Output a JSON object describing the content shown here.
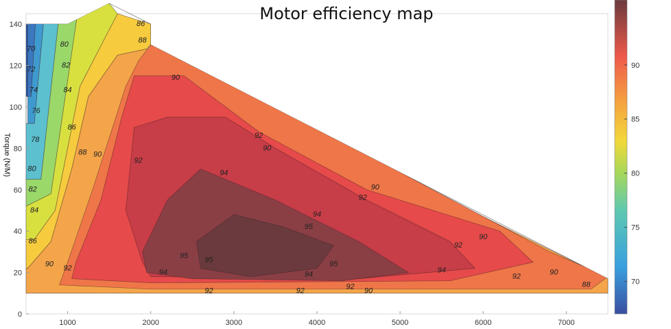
{
  "chart_data": {
    "type": "heatmap",
    "subtype": "filled-contour",
    "title": "Motor efficiency map",
    "xlabel": "",
    "ylabel": "Torque  (N/M)",
    "xlim": [
      500,
      7500
    ],
    "ylim": [
      0,
      145
    ],
    "x_ticks": [
      1000,
      2000,
      3000,
      4000,
      5000,
      6000,
      7000
    ],
    "y_ticks": [
      0,
      20,
      40,
      60,
      80,
      100,
      120,
      140
    ],
    "colorbar": {
      "min": 67,
      "max": 96,
      "ticks": [
        70,
        75,
        80,
        85,
        90
      ]
    },
    "grid": false,
    "envelope": [
      [
        500,
        140
      ],
      [
        1000,
        140
      ],
      [
        1500,
        150
      ],
      [
        2000,
        140
      ],
      [
        2000,
        130
      ],
      [
        7500,
        17
      ],
      [
        7500,
        10
      ],
      [
        500,
        10
      ]
    ],
    "contour_levels": [
      70,
      72,
      74,
      76,
      78,
      80,
      82,
      84,
      86,
      88,
      90,
      92,
      94,
      95
    ],
    "regions": [
      {
        "level": 70,
        "color": "#2a5aa8",
        "points": [
          [
            500,
            145
          ],
          [
            520,
            145
          ],
          [
            520,
            105
          ],
          [
            500,
            105
          ]
        ]
      },
      {
        "level": 72,
        "color": "#3a78c0",
        "points": [
          [
            520,
            145
          ],
          [
            620,
            145
          ],
          [
            560,
            105
          ],
          [
            520,
            105
          ]
        ]
      },
      {
        "level": 74,
        "color": "#3f9ad0",
        "points": [
          [
            620,
            145
          ],
          [
            720,
            145
          ],
          [
            600,
            92
          ],
          [
            520,
            92
          ],
          [
            520,
            105
          ],
          [
            560,
            105
          ]
        ]
      },
      {
        "level": 78,
        "color": "#5cc0cf",
        "points": [
          [
            720,
            145
          ],
          [
            900,
            145
          ],
          [
            680,
            65
          ],
          [
            500,
            65
          ],
          [
            500,
            92
          ],
          [
            600,
            92
          ]
        ]
      },
      {
        "level": 82,
        "color": "#9ad86a",
        "points": [
          [
            900,
            145
          ],
          [
            1130,
            148
          ],
          [
            800,
            58
          ],
          [
            500,
            52
          ],
          [
            500,
            65
          ],
          [
            680,
            65
          ]
        ]
      },
      {
        "level": 84,
        "color": "#d8e040",
        "points": [
          [
            1130,
            148
          ],
          [
            1500,
            150
          ],
          [
            1600,
            145
          ],
          [
            1150,
            110
          ],
          [
            850,
            50
          ],
          [
            600,
            36
          ],
          [
            500,
            36
          ],
          [
            500,
            52
          ],
          [
            800,
            58
          ]
        ]
      },
      {
        "level": 86,
        "color": "#f6cb3e",
        "points": [
          [
            1600,
            145
          ],
          [
            2000,
            140
          ],
          [
            2000,
            130
          ],
          [
            1950,
            128
          ],
          [
            1600,
            125
          ],
          [
            1250,
            105
          ],
          [
            1050,
            70
          ],
          [
            800,
            35
          ],
          [
            520,
            22
          ],
          [
            500,
            22
          ],
          [
            500,
            36
          ],
          [
            600,
            36
          ],
          [
            850,
            50
          ],
          [
            1150,
            110
          ]
        ]
      },
      {
        "level": 88,
        "color": "#f4a54a",
        "points": [
          [
            1950,
            128
          ],
          [
            7500,
            17
          ],
          [
            7500,
            10
          ],
          [
            500,
            10
          ],
          [
            500,
            22
          ],
          [
            520,
            22
          ],
          [
            800,
            35
          ],
          [
            1050,
            70
          ],
          [
            1250,
            105
          ],
          [
            1600,
            125
          ]
        ]
      },
      {
        "level": 90,
        "color": "#ef7648",
        "points": [
          [
            1850,
            122
          ],
          [
            2000,
            130
          ],
          [
            2600,
            120
          ],
          [
            5300,
            62
          ],
          [
            6800,
            30
          ],
          [
            7500,
            18
          ],
          [
            7300,
            12
          ],
          [
            6000,
            12
          ],
          [
            2000,
            12
          ],
          [
            900,
            14
          ],
          [
            1000,
            25
          ],
          [
            1300,
            60
          ],
          [
            1700,
            110
          ]
        ]
      },
      {
        "level": 92,
        "color": "#e64a4a",
        "points": [
          [
            1800,
            115
          ],
          [
            2400,
            115
          ],
          [
            3300,
            88
          ],
          [
            4600,
            60
          ],
          [
            6200,
            40
          ],
          [
            6600,
            25
          ],
          [
            5600,
            16
          ],
          [
            2000,
            15
          ],
          [
            1050,
            17
          ],
          [
            1100,
            25
          ],
          [
            1400,
            55
          ],
          [
            1650,
            95
          ]
        ]
      },
      {
        "level": 94,
        "color": "#c73d48",
        "points": [
          [
            1800,
            90
          ],
          [
            2200,
            95
          ],
          [
            2900,
            95
          ],
          [
            3500,
            80
          ],
          [
            4600,
            55
          ],
          [
            5600,
            35
          ],
          [
            5900,
            22
          ],
          [
            4500,
            17
          ],
          [
            2000,
            18
          ],
          [
            1900,
            25
          ],
          [
            1700,
            50
          ]
        ]
      },
      {
        "level": 95,
        "color": "#8a3f45",
        "points": [
          [
            1900,
            30
          ],
          [
            2200,
            55
          ],
          [
            2600,
            70
          ],
          [
            3500,
            55
          ],
          [
            4500,
            35
          ],
          [
            5100,
            20
          ],
          [
            4300,
            16
          ],
          [
            2500,
            17
          ],
          [
            1950,
            20
          ]
        ]
      },
      {
        "level": 96,
        "color": "#6a3a3e",
        "points": [
          [
            2550,
            35
          ],
          [
            3000,
            48
          ],
          [
            3600,
            42
          ],
          [
            4200,
            33
          ],
          [
            4000,
            22
          ],
          [
            3200,
            18
          ],
          [
            2600,
            22
          ]
        ]
      }
    ],
    "contour_labels": [
      {
        "text": "70",
        "x": 560,
        "y": 128
      },
      {
        "text": "72",
        "x": 560,
        "y": 118
      },
      {
        "text": "74",
        "x": 590,
        "y": 108
      },
      {
        "text": "76",
        "x": 620,
        "y": 98
      },
      {
        "text": "78",
        "x": 610,
        "y": 84
      },
      {
        "text": "80",
        "x": 570,
        "y": 70
      },
      {
        "text": "80",
        "x": 960,
        "y": 130
      },
      {
        "text": "82",
        "x": 980,
        "y": 120
      },
      {
        "text": "82",
        "x": 580,
        "y": 60
      },
      {
        "text": "84",
        "x": 1000,
        "y": 108
      },
      {
        "text": "84",
        "x": 600,
        "y": 50
      },
      {
        "text": "86",
        "x": 1050,
        "y": 90
      },
      {
        "text": "86",
        "x": 580,
        "y": 35
      },
      {
        "text": "86",
        "x": 1880,
        "y": 140
      },
      {
        "text": "88",
        "x": 1180,
        "y": 78
      },
      {
        "text": "88",
        "x": 1900,
        "y": 132
      },
      {
        "text": "88",
        "x": 7240,
        "y": 14
      },
      {
        "text": "90",
        "x": 1360,
        "y": 77
      },
      {
        "text": "90",
        "x": 2300,
        "y": 114
      },
      {
        "text": "90",
        "x": 3400,
        "y": 80
      },
      {
        "text": "90",
        "x": 4700,
        "y": 61
      },
      {
        "text": "90",
        "x": 6000,
        "y": 37
      },
      {
        "text": "90",
        "x": 6850,
        "y": 20
      },
      {
        "text": "90",
        "x": 780,
        "y": 24
      },
      {
        "text": "90",
        "x": 4620,
        "y": 11
      },
      {
        "text": "92",
        "x": 3300,
        "y": 86
      },
      {
        "text": "92",
        "x": 1850,
        "y": 74
      },
      {
        "text": "92",
        "x": 4550,
        "y": 56
      },
      {
        "text": "92",
        "x": 5700,
        "y": 33
      },
      {
        "text": "92",
        "x": 6400,
        "y": 18
      },
      {
        "text": "92",
        "x": 1000,
        "y": 22
      },
      {
        "text": "92",
        "x": 4400,
        "y": 13
      },
      {
        "text": "92",
        "x": 3800,
        "y": 11
      },
      {
        "text": "92",
        "x": 2700,
        "y": 11
      },
      {
        "text": "94",
        "x": 2880,
        "y": 68
      },
      {
        "text": "94",
        "x": 4000,
        "y": 48
      },
      {
        "text": "94",
        "x": 5500,
        "y": 21
      },
      {
        "text": "94",
        "x": 3900,
        "y": 19
      },
      {
        "text": "94",
        "x": 2150,
        "y": 20
      },
      {
        "text": "95",
        "x": 3900,
        "y": 42
      },
      {
        "text": "95",
        "x": 2700,
        "y": 26
      },
      {
        "text": "95",
        "x": 4200,
        "y": 24
      },
      {
        "text": "95",
        "x": 2400,
        "y": 28
      }
    ]
  }
}
